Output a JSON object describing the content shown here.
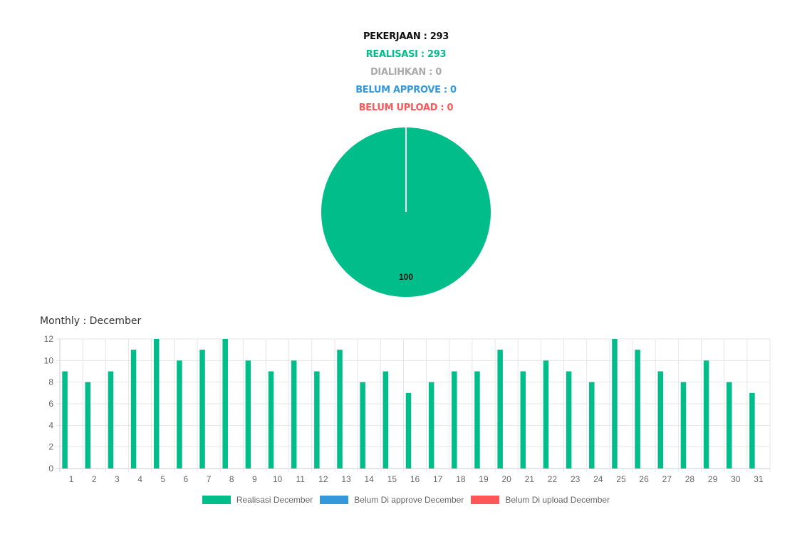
{
  "summary": {
    "pekerjaan": "PEKERJAAN : 293",
    "realisasi": "REALISASI : 293",
    "dialihkan": "DIALIHKAN : 0",
    "belum_approve": "BELUM APPROVE : 0",
    "belum_upload": "BELUM UPLOAD : 0"
  },
  "colors": {
    "pekerjaan": "#111111",
    "realisasi": "#00bd8a",
    "dialihkan": "#aaaaaa",
    "belum_approve": "#3498db",
    "belum_upload": "#ff5757"
  },
  "monthly_title": "Monthly : December",
  "chart_data": [
    {
      "type": "pie",
      "slices": [
        {
          "value": 100,
          "color": "#00bd8a",
          "label": "100"
        }
      ]
    },
    {
      "type": "bar",
      "categories": [
        "1",
        "2",
        "3",
        "4",
        "5",
        "6",
        "7",
        "8",
        "9",
        "10",
        "11",
        "12",
        "13",
        "14",
        "15",
        "16",
        "17",
        "18",
        "19",
        "20",
        "21",
        "22",
        "23",
        "24",
        "25",
        "26",
        "27",
        "28",
        "29",
        "30",
        "31"
      ],
      "series": [
        {
          "name": "Realisasi December",
          "color": "#00bd8a",
          "values": [
            9,
            8,
            9,
            11,
            12,
            10,
            11,
            12,
            10,
            9,
            10,
            9,
            11,
            8,
            9,
            7,
            8,
            9,
            9,
            11,
            9,
            10,
            9,
            8,
            12,
            11,
            9,
            8,
            10,
            8,
            7
          ]
        },
        {
          "name": "Belum Di approve December",
          "color": "#3498db",
          "values": [
            0,
            0,
            0,
            0,
            0,
            0,
            0,
            0,
            0,
            0,
            0,
            0,
            0,
            0,
            0,
            0,
            0,
            0,
            0,
            0,
            0,
            0,
            0,
            0,
            0,
            0,
            0,
            0,
            0,
            0,
            0
          ]
        },
        {
          "name": "Belum Di upload December",
          "color": "#ff5757",
          "values": [
            0,
            0,
            0,
            0,
            0,
            0,
            0,
            0,
            0,
            0,
            0,
            0,
            0,
            0,
            0,
            0,
            0,
            0,
            0,
            0,
            0,
            0,
            0,
            0,
            0,
            0,
            0,
            0,
            0,
            0,
            0
          ]
        }
      ],
      "yticks": [
        0,
        2,
        4,
        6,
        8,
        10,
        12
      ],
      "ylim": [
        0,
        12
      ],
      "grid": true,
      "legend": "bottom"
    }
  ]
}
